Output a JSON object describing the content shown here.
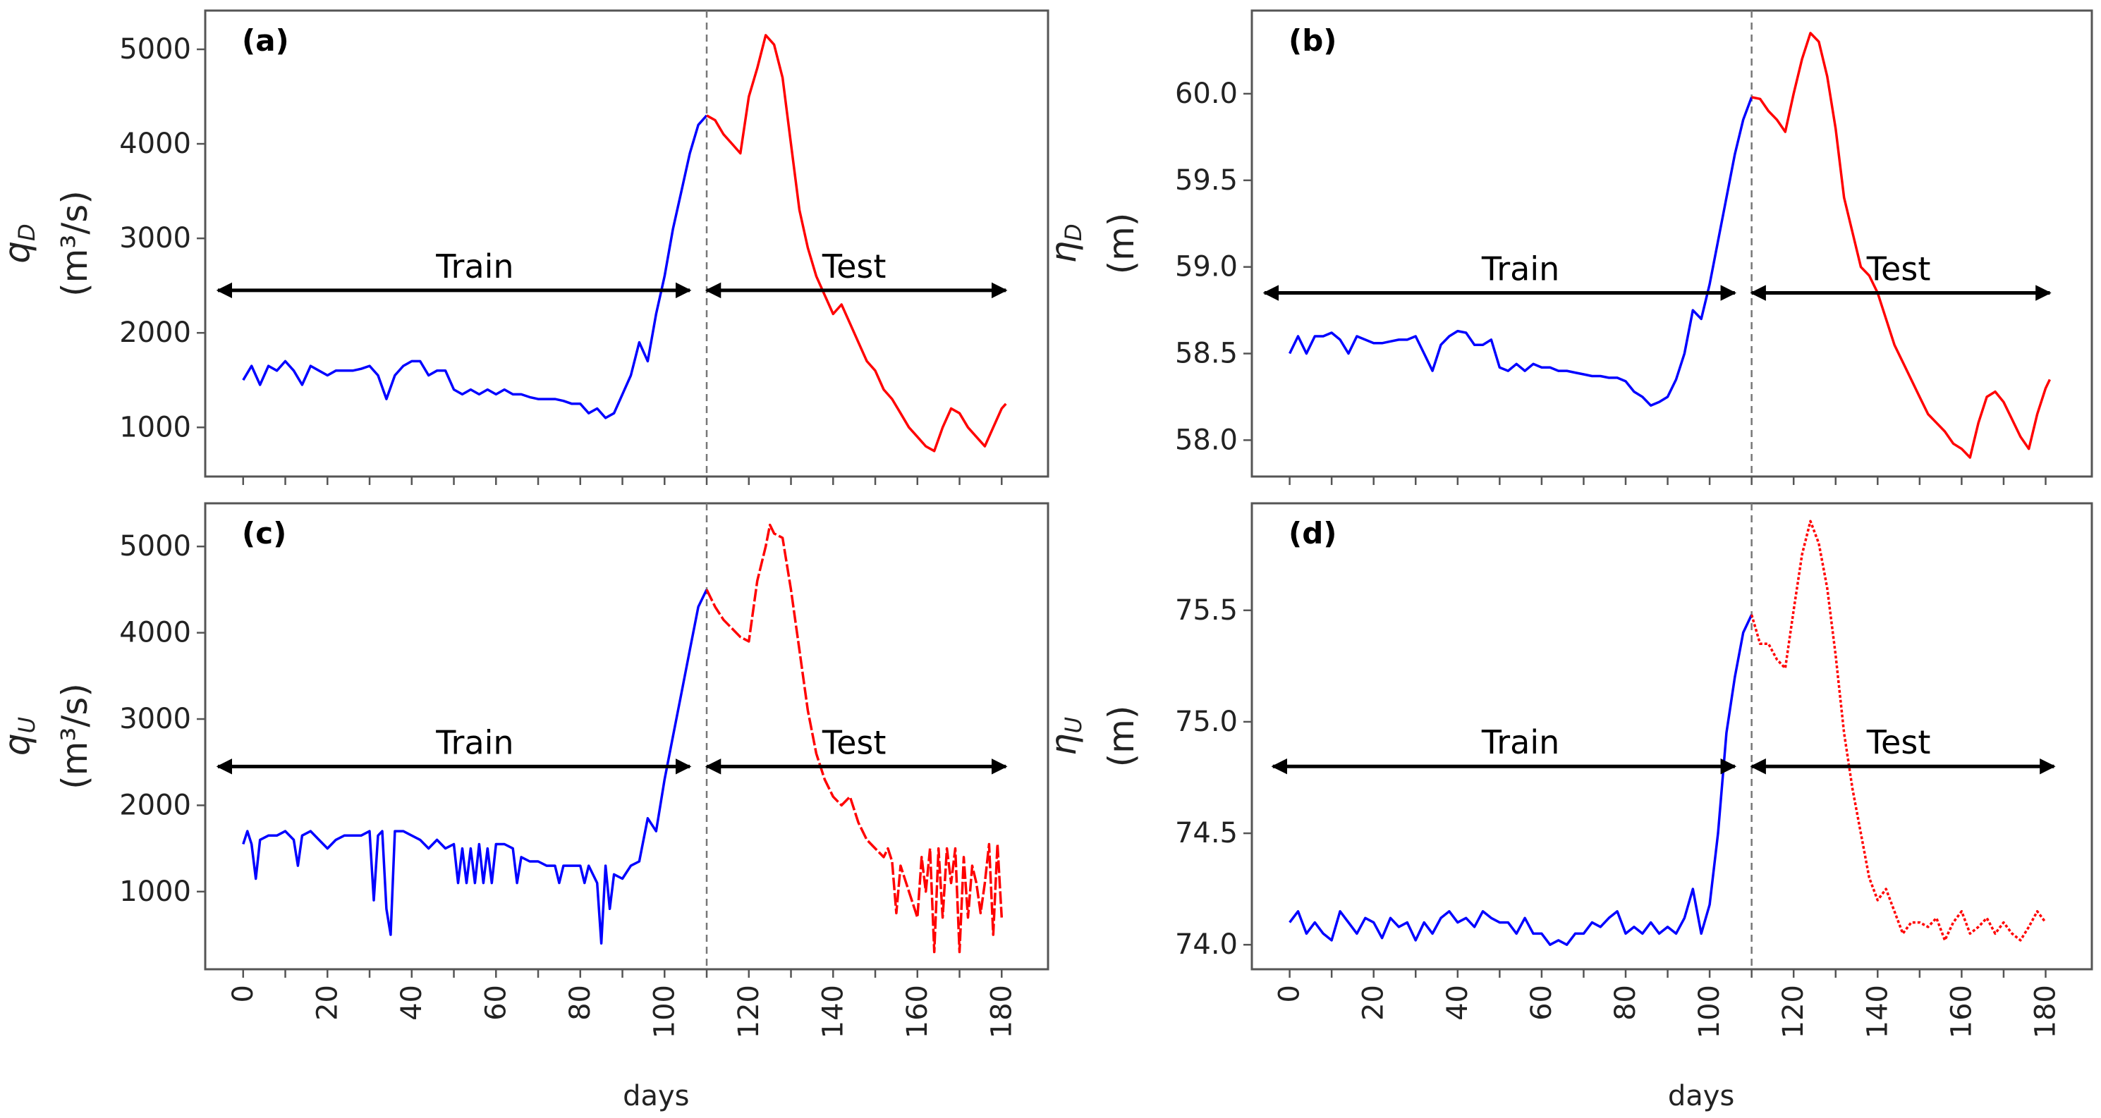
{
  "chart_data": [
    {
      "type": "line",
      "panel_label": "(a)",
      "ylabel_symbol": "q",
      "ylabel_sub": "D",
      "ylabel_unit": "(m³/s)",
      "xlabel": "",
      "xlim": [
        -9,
        191
      ],
      "ylim": [
        480,
        5410
      ],
      "xticks": [
        0,
        20,
        40,
        60,
        80,
        100,
        120,
        140,
        160,
        180
      ],
      "yticks": [
        1000,
        2000,
        3000,
        4000,
        5000
      ],
      "ytick_labels": [
        "1000",
        "2000",
        "3000",
        "4000",
        "5000"
      ],
      "split_day": 110,
      "arrows": {
        "y": 2450,
        "train": [
          -6,
          106
        ],
        "test": [
          110,
          181
        ]
      },
      "split_labels": {
        "train": "Train",
        "test": "Test"
      },
      "colors": {
        "train": "#0000ff",
        "test": "#ff0000"
      },
      "series": [
        {
          "role": "train",
          "style": "solid",
          "x": [
            0,
            2,
            4,
            6,
            8,
            10,
            12,
            14,
            16,
            18,
            20,
            22,
            24,
            26,
            28,
            30,
            32,
            34,
            36,
            38,
            40,
            42,
            44,
            46,
            48,
            50,
            52,
            54,
            56,
            58,
            60,
            62,
            64,
            66,
            68,
            70,
            72,
            74,
            76,
            78,
            80,
            82,
            84,
            86,
            88,
            90,
            92,
            94,
            96,
            98,
            100,
            102,
            104,
            106,
            108,
            110
          ],
          "y": [
            1500,
            1650,
            1450,
            1650,
            1600,
            1700,
            1600,
            1450,
            1650,
            1600,
            1550,
            1600,
            1600,
            1600,
            1620,
            1650,
            1550,
            1300,
            1550,
            1650,
            1700,
            1700,
            1550,
            1600,
            1600,
            1400,
            1350,
            1400,
            1350,
            1400,
            1350,
            1400,
            1350,
            1350,
            1320,
            1300,
            1300,
            1300,
            1280,
            1250,
            1250,
            1150,
            1200,
            1100,
            1150,
            1350,
            1550,
            1900,
            1700,
            2200,
            2600,
            3100,
            3500,
            3900,
            4200,
            4300
          ]
        },
        {
          "role": "test",
          "style": "solid",
          "x": [
            110,
            112,
            114,
            116,
            118,
            120,
            122,
            124,
            126,
            128,
            130,
            132,
            134,
            136,
            138,
            140,
            142,
            144,
            146,
            148,
            150,
            152,
            154,
            156,
            158,
            160,
            162,
            164,
            166,
            168,
            170,
            172,
            174,
            176,
            178,
            180,
            181
          ],
          "y": [
            4300,
            4250,
            4100,
            4000,
            3900,
            4500,
            4800,
            5150,
            5050,
            4700,
            4000,
            3300,
            2900,
            2600,
            2400,
            2200,
            2300,
            2100,
            1900,
            1700,
            1600,
            1400,
            1300,
            1150,
            1000,
            900,
            800,
            750,
            1000,
            1200,
            1150,
            1000,
            900,
            800,
            1000,
            1200,
            1250
          ]
        }
      ]
    },
    {
      "type": "line",
      "panel_label": "(b)",
      "ylabel_symbol": "η",
      "ylabel_sub": "D",
      "ylabel_unit": "(m)",
      "xlabel": "",
      "xlim": [
        -9,
        191
      ],
      "ylim": [
        57.79,
        60.48
      ],
      "xticks": [
        0,
        20,
        40,
        60,
        80,
        100,
        120,
        140,
        160,
        180
      ],
      "yticks": [
        58.0,
        58.5,
        59.0,
        59.5,
        60.0
      ],
      "ytick_labels": [
        "58.0",
        "58.5",
        "59.0",
        "59.5",
        "60.0"
      ],
      "split_day": 110,
      "arrows": {
        "y": 58.85,
        "train": [
          -6,
          106
        ],
        "test": [
          110,
          181
        ]
      },
      "split_labels": {
        "train": "Train",
        "test": "Test"
      },
      "colors": {
        "train": "#0000ff",
        "test": "#ff0000"
      },
      "series": [
        {
          "role": "train",
          "style": "solid",
          "x": [
            0,
            2,
            4,
            6,
            8,
            10,
            12,
            14,
            16,
            18,
            20,
            22,
            24,
            26,
            28,
            30,
            32,
            34,
            36,
            38,
            40,
            42,
            44,
            46,
            48,
            50,
            52,
            54,
            56,
            58,
            60,
            62,
            64,
            66,
            68,
            70,
            72,
            74,
            76,
            78,
            80,
            82,
            84,
            86,
            88,
            90,
            92,
            94,
            96,
            98,
            100,
            102,
            104,
            106,
            108,
            110
          ],
          "y": [
            58.5,
            58.6,
            58.5,
            58.6,
            58.6,
            58.62,
            58.58,
            58.5,
            58.6,
            58.58,
            58.56,
            58.56,
            58.57,
            58.58,
            58.58,
            58.6,
            58.5,
            58.4,
            58.55,
            58.6,
            58.63,
            58.62,
            58.55,
            58.55,
            58.58,
            58.42,
            58.4,
            58.44,
            58.4,
            58.44,
            58.42,
            58.42,
            58.4,
            58.4,
            58.39,
            58.38,
            58.37,
            58.37,
            58.36,
            58.36,
            58.34,
            58.28,
            58.25,
            58.2,
            58.22,
            58.25,
            58.35,
            58.5,
            58.75,
            58.7,
            58.9,
            59.15,
            59.4,
            59.65,
            59.85,
            59.98
          ]
        },
        {
          "role": "test",
          "style": "solid",
          "x": [
            110,
            112,
            114,
            116,
            118,
            120,
            122,
            124,
            126,
            128,
            130,
            132,
            134,
            136,
            138,
            140,
            142,
            144,
            146,
            148,
            150,
            152,
            154,
            156,
            158,
            160,
            162,
            164,
            166,
            168,
            170,
            172,
            174,
            176,
            178,
            180,
            181
          ],
          "y": [
            59.98,
            59.97,
            59.9,
            59.85,
            59.78,
            60.0,
            60.2,
            60.35,
            60.3,
            60.1,
            59.8,
            59.4,
            59.2,
            59.0,
            58.95,
            58.85,
            58.7,
            58.55,
            58.45,
            58.35,
            58.25,
            58.15,
            58.1,
            58.05,
            57.98,
            57.95,
            57.9,
            58.1,
            58.25,
            58.28,
            58.22,
            58.12,
            58.02,
            57.95,
            58.15,
            58.3,
            58.35
          ]
        }
      ]
    },
    {
      "type": "line",
      "panel_label": "(c)",
      "ylabel_symbol": "q",
      "ylabel_sub": "U",
      "ylabel_unit": "(m³/s)",
      "xlabel": "days",
      "xlim": [
        -9,
        191
      ],
      "ylim": [
        100,
        5500
      ],
      "xticks": [
        0,
        20,
        40,
        60,
        80,
        100,
        120,
        140,
        160,
        180
      ],
      "xtick_labels": [
        "0",
        "20",
        "40",
        "60",
        "80",
        "100",
        "120",
        "140",
        "160",
        "180"
      ],
      "yticks": [
        1000,
        2000,
        3000,
        4000,
        5000
      ],
      "ytick_labels": [
        "1000",
        "2000",
        "3000",
        "4000",
        "5000"
      ],
      "split_day": 110,
      "arrows": {
        "y": 2450,
        "train": [
          -6,
          106
        ],
        "test": [
          110,
          181
        ]
      },
      "split_labels": {
        "train": "Train",
        "test": "Test"
      },
      "colors": {
        "train": "#0000ff",
        "test": "#ff0000"
      },
      "series": [
        {
          "role": "train",
          "style": "solid",
          "x": [
            0,
            1,
            2,
            3,
            4,
            6,
            8,
            10,
            12,
            13,
            14,
            16,
            18,
            20,
            22,
            24,
            26,
            28,
            30,
            31,
            32,
            33,
            34,
            35,
            36,
            38,
            40,
            42,
            44,
            46,
            48,
            50,
            51,
            52,
            53,
            54,
            55,
            56,
            57,
            58,
            59,
            60,
            62,
            64,
            65,
            66,
            68,
            70,
            72,
            74,
            75,
            76,
            78,
            80,
            81,
            82,
            84,
            85,
            86,
            87,
            88,
            90,
            92,
            94,
            96,
            98,
            100,
            102,
            104,
            106,
            108,
            110
          ],
          "y": [
            1550,
            1700,
            1550,
            1150,
            1600,
            1650,
            1650,
            1700,
            1600,
            1300,
            1650,
            1700,
            1600,
            1500,
            1600,
            1650,
            1650,
            1650,
            1700,
            900,
            1650,
            1700,
            800,
            500,
            1700,
            1700,
            1650,
            1600,
            1500,
            1600,
            1500,
            1550,
            1100,
            1500,
            1100,
            1500,
            1100,
            1550,
            1100,
            1500,
            1100,
            1550,
            1550,
            1500,
            1100,
            1400,
            1350,
            1350,
            1300,
            1300,
            1100,
            1300,
            1300,
            1300,
            1100,
            1300,
            1100,
            400,
            1300,
            800,
            1200,
            1150,
            1300,
            1350,
            1850,
            1700,
            2300,
            2800,
            3300,
            3800,
            4300,
            4500
          ]
        },
        {
          "role": "test",
          "style": "dashed",
          "x": [
            110,
            112,
            114,
            116,
            118,
            120,
            122,
            124,
            125,
            126,
            128,
            130,
            132,
            134,
            136,
            138,
            140,
            142,
            144,
            146,
            148,
            150,
            152,
            153,
            154,
            155,
            156,
            158,
            160,
            161,
            162,
            163,
            164,
            165,
            166,
            167,
            168,
            169,
            170,
            171,
            172,
            173,
            174,
            175,
            176,
            177,
            178,
            179,
            180
          ],
          "y": [
            4500,
            4300,
            4150,
            4050,
            3950,
            3900,
            4600,
            5000,
            5250,
            5150,
            5100,
            4500,
            3800,
            3100,
            2600,
            2300,
            2100,
            2000,
            2100,
            1800,
            1600,
            1500,
            1400,
            1500,
            1350,
            750,
            1300,
            1000,
            700,
            1400,
            1000,
            1500,
            300,
            1500,
            700,
            1500,
            1100,
            1500,
            300,
            1400,
            700,
            1300,
            1100,
            750,
            1100,
            1550,
            500,
            1550,
            700
          ]
        }
      ]
    },
    {
      "type": "line",
      "panel_label": "(d)",
      "ylabel_symbol": "η",
      "ylabel_sub": "U",
      "ylabel_unit": "(m)",
      "xlabel": "days",
      "xlim": [
        -9,
        191
      ],
      "ylim": [
        73.89,
        75.98
      ],
      "xticks": [
        0,
        20,
        40,
        60,
        80,
        100,
        120,
        140,
        160,
        180
      ],
      "xtick_labels": [
        "0",
        "20",
        "40",
        "60",
        "80",
        "100",
        "120",
        "140",
        "160",
        "180"
      ],
      "yticks": [
        74.0,
        74.5,
        75.0,
        75.5
      ],
      "ytick_labels": [
        "74.0",
        "74.5",
        "75.0",
        "75.5"
      ],
      "split_day": 110,
      "arrows": {
        "y": 74.8,
        "train": [
          -4,
          106
        ],
        "test": [
          110,
          182
        ]
      },
      "split_labels": {
        "train": "Train",
        "test": "Test"
      },
      "colors": {
        "train": "#0000ff",
        "test": "#ff0000"
      },
      "series": [
        {
          "role": "train",
          "style": "solid",
          "x": [
            0,
            2,
            4,
            6,
            8,
            10,
            12,
            14,
            16,
            18,
            20,
            22,
            24,
            26,
            28,
            30,
            32,
            34,
            36,
            38,
            40,
            42,
            44,
            46,
            48,
            50,
            52,
            54,
            56,
            58,
            60,
            62,
            64,
            66,
            68,
            70,
            72,
            74,
            76,
            78,
            80,
            82,
            84,
            86,
            88,
            90,
            92,
            94,
            96,
            98,
            100,
            102,
            104,
            106,
            108,
            110
          ],
          "y": [
            74.1,
            74.15,
            74.05,
            74.1,
            74.05,
            74.02,
            74.15,
            74.1,
            74.05,
            74.12,
            74.1,
            74.03,
            74.12,
            74.08,
            74.1,
            74.02,
            74.1,
            74.05,
            74.12,
            74.15,
            74.1,
            74.12,
            74.08,
            74.15,
            74.12,
            74.1,
            74.1,
            74.05,
            74.12,
            74.05,
            74.05,
            74.0,
            74.02,
            74.0,
            74.05,
            74.05,
            74.1,
            74.08,
            74.12,
            74.15,
            74.05,
            74.08,
            74.05,
            74.1,
            74.05,
            74.08,
            74.05,
            74.12,
            74.25,
            74.05,
            74.18,
            74.5,
            74.95,
            75.2,
            75.4,
            75.48
          ]
        },
        {
          "role": "test",
          "style": "dotted",
          "x": [
            110,
            112,
            114,
            116,
            118,
            120,
            122,
            124,
            126,
            128,
            130,
            132,
            134,
            136,
            138,
            140,
            142,
            144,
            146,
            148,
            150,
            152,
            154,
            156,
            158,
            160,
            162,
            164,
            166,
            168,
            170,
            172,
            174,
            176,
            178,
            180
          ],
          "y": [
            75.48,
            75.35,
            75.35,
            75.28,
            75.24,
            75.5,
            75.75,
            75.9,
            75.8,
            75.6,
            75.3,
            74.95,
            74.7,
            74.5,
            74.3,
            74.2,
            74.25,
            74.15,
            74.05,
            74.1,
            74.1,
            74.08,
            74.12,
            74.02,
            74.1,
            74.15,
            74.05,
            74.08,
            74.12,
            74.05,
            74.1,
            74.05,
            74.02,
            74.08,
            74.15,
            74.1
          ]
        }
      ]
    }
  ]
}
